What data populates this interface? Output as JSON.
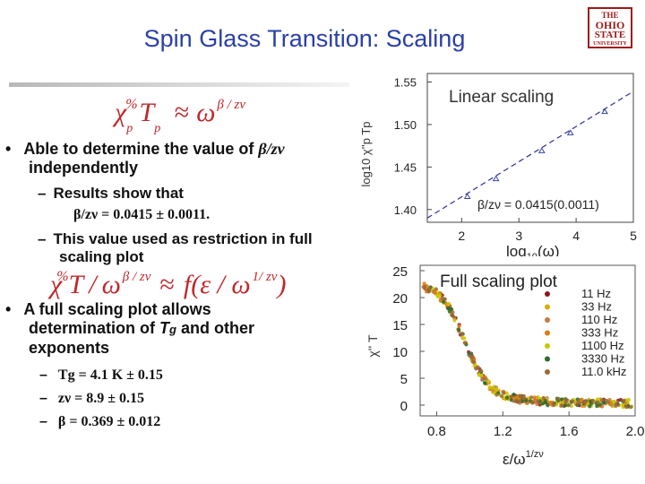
{
  "slide": {
    "title": "Spin Glass Transition: Scaling",
    "logo": {
      "line1": "THE",
      "line2": "OHIO",
      "line3": "STATE",
      "line4": "UNIVERSITY"
    },
    "formula1": {
      "chi": "χ",
      "sub_p": "p",
      "tilde": "%",
      "T": "T",
      "sub_p2": "p",
      "approx": "≈",
      "omega": "ω",
      "exp": "β / zν"
    },
    "bullet1": {
      "marker": "•",
      "text_a": "Able to determine the value of ",
      "beta_term": "β/zν",
      "text_b": "independently"
    },
    "sub1": {
      "dash": "–",
      "text": "Results show that",
      "value": "β/zν = 0.0415 ± 0.0011."
    },
    "sub2": {
      "dash": "–",
      "line1": "This value used as restriction in full",
      "line2": "scaling plot"
    },
    "formula2": {
      "chi": "χ",
      "tilde": "%",
      "T": "T",
      "slash": "/",
      "omega": "ω",
      "exp1": "β / zν",
      "approx": "≈",
      "f": "f",
      "arg": "(ε / ω",
      "exp2": "1/ zν",
      "close": ")"
    },
    "bullet2": {
      "marker": "•",
      "line1": "A full scaling plot allows",
      "line2a": "determination of ",
      "Tg": "T",
      "g": "g",
      "line2b": " and other",
      "line3": "exponents"
    },
    "results": [
      {
        "dash": "–",
        "text": "Tg = 4.1 K ± 0.15"
      },
      {
        "dash": "–",
        "text": "zν = 8.9 ± 0.15"
      },
      {
        "dash": "–",
        "text": "β = 0.369 ± 0.012"
      }
    ]
  },
  "chart_data": [
    {
      "type": "scatter",
      "title": "Linear scaling",
      "annotation": "β/zν = 0.0415(0.0011)",
      "xlabel": "log10(ω)",
      "xlabel_parts": {
        "main": "log",
        "sub": "10",
        "rest": "(ω)"
      },
      "ylabel": "log10 χ''p Tp",
      "x_ticks": [
        "2",
        "3",
        "4",
        "5"
      ],
      "y_ticks": [
        "1.40",
        "1.45",
        "1.50",
        "1.55"
      ],
      "xlim": [
        1.4,
        5.0
      ],
      "ylim": [
        1.385,
        1.56
      ],
      "grid": false,
      "points": {
        "x": [
          2.1,
          2.6,
          3.4,
          3.9,
          4.5
        ],
        "y": [
          1.415,
          1.436,
          1.469,
          1.49,
          1.515
        ]
      },
      "fit_line": {
        "x": [
          1.4,
          5.0
        ],
        "y": [
          1.39,
          1.539
        ]
      },
      "colors": {
        "points": "#3c46a0",
        "line": "#2d2d9e"
      }
    },
    {
      "type": "scatter",
      "title": "Full scaling plot",
      "xlabel": "ε/ω1/zν",
      "xlabel_parts": {
        "main": "ε/ω",
        "sup": "1/zν"
      },
      "ylabel": "χ'' T",
      "x_ticks": [
        "0.8",
        "1.2",
        "1.6",
        "2.0"
      ],
      "y_ticks": [
        "0",
        "5",
        "10",
        "15",
        "20",
        "25"
      ],
      "xlim": [
        0.7,
        2.0
      ],
      "ylim": [
        -2,
        26
      ],
      "grid": false,
      "legend_position": "top-right",
      "series": [
        {
          "name": "11 Hz",
          "color": "#8b1a1a"
        },
        {
          "name": "33 Hz",
          "color": "#d4b000"
        },
        {
          "name": "110 Hz",
          "color": "#c97a3a"
        },
        {
          "name": "333 Hz",
          "color": "#e07a10"
        },
        {
          "name": "1100 Hz",
          "color": "#c8c800"
        },
        {
          "name": "3330 Hz",
          "color": "#2e6b2e"
        },
        {
          "name": "11.0 kHz",
          "color": "#9a6a3a"
        }
      ],
      "curve": {
        "x": [
          0.72,
          0.76,
          0.8,
          0.84,
          0.88,
          0.92,
          0.96,
          1.0,
          1.05,
          1.1,
          1.15,
          1.2,
          1.3,
          1.4,
          1.5,
          1.6,
          1.7,
          1.8,
          1.9,
          2.0
        ],
        "y": [
          22,
          21.5,
          21,
          19.5,
          18,
          15.5,
          12.5,
          9.5,
          6.5,
          4.2,
          2.8,
          1.9,
          1.1,
          0.8,
          0.6,
          0.5,
          0.45,
          0.4,
          0.35,
          0.3
        ]
      }
    }
  ]
}
